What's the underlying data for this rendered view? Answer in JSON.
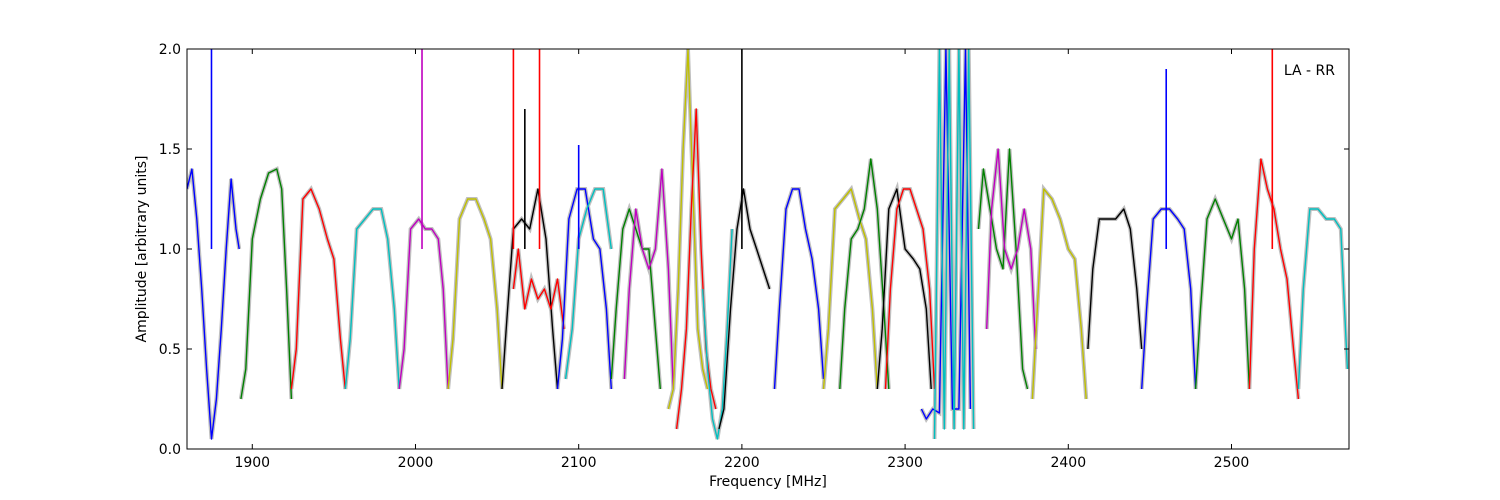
{
  "chart_data": {
    "type": "line",
    "title": "",
    "annotation": "LA - RR",
    "xlabel": "Frequency [MHz]",
    "ylabel": "Amplitude [arbitrary units]",
    "xlim": [
      1860,
      2572
    ],
    "ylim": [
      0.0,
      2.0
    ],
    "xticks": [
      1900,
      2000,
      2100,
      2200,
      2300,
      2400,
      2500
    ],
    "yticks": [
      0.0,
      0.5,
      1.0,
      1.5,
      2.0
    ],
    "xtick_labels": [
      "1900",
      "2000",
      "2100",
      "2200",
      "2300",
      "2400",
      "2500"
    ],
    "ytick_labels": [
      "0.0",
      "0.5",
      "1.0",
      "1.5",
      "2.0"
    ],
    "grid": false,
    "background_color": "#c0c0c0",
    "series": [
      {
        "color": "#0000ff",
        "x": [
          1860,
          1863,
          1866,
          1869,
          1872,
          1875,
          1878,
          1881,
          1884,
          1887,
          1890,
          1892
        ],
        "y": [
          1.3,
          1.4,
          1.15,
          0.8,
          0.4,
          0.05,
          0.25,
          0.6,
          1.0,
          1.35,
          1.1,
          1.0
        ]
      },
      {
        "color": "#008000",
        "x": [
          1893,
          1896,
          1900,
          1905,
          1910,
          1915,
          1918,
          1921,
          1924
        ],
        "y": [
          0.25,
          0.4,
          1.05,
          1.25,
          1.38,
          1.4,
          1.3,
          0.8,
          0.25
        ]
      },
      {
        "color": "#ff0000",
        "x": [
          1924,
          1927,
          1931,
          1936,
          1941,
          1946,
          1950,
          1954,
          1957
        ],
        "y": [
          0.3,
          0.5,
          1.25,
          1.3,
          1.2,
          1.05,
          0.95,
          0.55,
          0.3
        ]
      },
      {
        "color": "#00bfbf",
        "x": [
          1957,
          1960,
          1964,
          1969,
          1974,
          1979,
          1983,
          1987,
          1990
        ],
        "y": [
          0.3,
          0.55,
          1.1,
          1.15,
          1.2,
          1.2,
          1.05,
          0.7,
          0.3
        ]
      },
      {
        "color": "#bf00bf",
        "x": [
          1990,
          1993,
          1997,
          2002,
          2006,
          2010,
          2014,
          2017,
          2020
        ],
        "y": [
          0.3,
          0.5,
          1.1,
          1.15,
          1.1,
          1.1,
          1.05,
          0.8,
          0.3
        ]
      },
      {
        "color": "#bfbf00",
        "x": [
          2020,
          2023,
          2027,
          2032,
          2037,
          2042,
          2046,
          2050,
          2053
        ],
        "y": [
          0.3,
          0.55,
          1.15,
          1.25,
          1.25,
          1.15,
          1.05,
          0.7,
          0.3
        ]
      },
      {
        "color": "#000000",
        "x": [
          2053,
          2056,
          2060,
          2065,
          2070,
          2075,
          2080,
          2084,
          2087
        ],
        "y": [
          0.3,
          0.65,
          1.1,
          1.15,
          1.1,
          1.3,
          1.05,
          0.6,
          0.3
        ]
      },
      {
        "color": "#ff0000",
        "x": [
          2060,
          2063,
          2067,
          2071,
          2075,
          2079,
          2083,
          2087,
          2091
        ],
        "y": [
          0.8,
          1.0,
          0.7,
          0.85,
          0.75,
          0.8,
          0.7,
          0.85,
          0.6
        ]
      },
      {
        "color": "#0000ff",
        "x": [
          2087,
          2090,
          2094,
          2099,
          2104,
          2109,
          2113,
          2117,
          2120
        ],
        "y": [
          0.3,
          0.55,
          1.15,
          1.3,
          1.3,
          1.05,
          1.0,
          0.7,
          0.3
        ]
      },
      {
        "color": "#00bfbf",
        "x": [
          2092,
          2096,
          2100,
          2105,
          2110,
          2115,
          2120
        ],
        "y": [
          0.35,
          0.6,
          1.05,
          1.2,
          1.3,
          1.3,
          1.0
        ]
      },
      {
        "color": "#008000",
        "x": [
          2120,
          2123,
          2127,
          2131,
          2135,
          2139,
          2143,
          2147,
          2150
        ],
        "y": [
          0.35,
          0.7,
          1.1,
          1.2,
          1.1,
          1.0,
          1.0,
          0.6,
          0.3
        ]
      },
      {
        "color": "#bf00bf",
        "x": [
          2128,
          2131,
          2135,
          2139,
          2143,
          2147,
          2151,
          2155,
          2158
        ],
        "y": [
          0.35,
          0.8,
          1.2,
          1.0,
          0.9,
          1.0,
          1.4,
          0.9,
          0.3
        ]
      },
      {
        "color": "#bfbf00",
        "x": [
          2155,
          2158,
          2161,
          2164,
          2167,
          2170,
          2173,
          2176,
          2179
        ],
        "y": [
          0.2,
          0.3,
          0.8,
          1.5,
          2.0,
          1.3,
          0.6,
          0.4,
          0.3
        ]
      },
      {
        "color": "#ff0000",
        "x": [
          2160,
          2163,
          2166,
          2169,
          2172,
          2175,
          2178,
          2181,
          2184
        ],
        "y": [
          0.1,
          0.3,
          0.6,
          1.2,
          1.7,
          1.0,
          0.5,
          0.3,
          0.2
        ]
      },
      {
        "color": "#00bfbf",
        "x": [
          2176,
          2179,
          2182,
          2185,
          2188,
          2191,
          2194
        ],
        "y": [
          0.8,
          0.4,
          0.15,
          0.05,
          0.2,
          0.6,
          1.1
        ]
      },
      {
        "color": "#000000",
        "x": [
          2186,
          2189,
          2193,
          2197,
          2201,
          2205,
          2209,
          2213,
          2217
        ],
        "y": [
          0.1,
          0.2,
          0.7,
          1.1,
          1.3,
          1.1,
          1.0,
          0.9,
          0.8
        ]
      },
      {
        "color": "#0000ff",
        "x": [
          2220,
          2223,
          2227,
          2231,
          2235,
          2239,
          2243,
          2247,
          2250
        ],
        "y": [
          0.3,
          0.7,
          1.2,
          1.3,
          1.3,
          1.1,
          0.95,
          0.7,
          0.35
        ]
      },
      {
        "color": "#bfbf00",
        "x": [
          2250,
          2253,
          2257,
          2262,
          2267,
          2272,
          2276,
          2280,
          2283
        ],
        "y": [
          0.3,
          0.6,
          1.2,
          1.25,
          1.3,
          1.15,
          1.05,
          0.7,
          0.3
        ]
      },
      {
        "color": "#008000",
        "x": [
          2260,
          2263,
          2267,
          2271,
          2275,
          2279,
          2283,
          2287,
          2290
        ],
        "y": [
          0.3,
          0.7,
          1.05,
          1.1,
          1.2,
          1.45,
          1.2,
          0.7,
          0.3
        ]
      },
      {
        "color": "#000000",
        "x": [
          2283,
          2286,
          2290,
          2295,
          2300,
          2305,
          2309,
          2313,
          2316
        ],
        "y": [
          0.3,
          0.6,
          1.2,
          1.3,
          1.0,
          0.95,
          0.9,
          0.7,
          0.3
        ]
      },
      {
        "color": "#ff0000",
        "x": [
          2288,
          2291,
          2295,
          2299,
          2303,
          2307,
          2311,
          2315,
          2318
        ],
        "y": [
          0.3,
          0.8,
          1.2,
          1.3,
          1.3,
          1.2,
          1.1,
          0.8,
          0.3
        ]
      },
      {
        "color": "#0000ff",
        "x": [
          2310,
          2313,
          2317,
          2321,
          2325,
          2329,
          2333,
          2337,
          2340
        ],
        "y": [
          0.2,
          0.15,
          0.2,
          0.18,
          2.0,
          0.2,
          0.2,
          2.0,
          0.2
        ]
      },
      {
        "color": "#00bfbf",
        "x": [
          2318,
          2321,
          2324,
          2327,
          2330,
          2333,
          2336,
          2339,
          2342
        ],
        "y": [
          0.05,
          2.0,
          0.1,
          2.0,
          0.1,
          2.0,
          0.1,
          2.0,
          0.1
        ]
      },
      {
        "color": "#008000",
        "x": [
          2345,
          2348,
          2352,
          2356,
          2360,
          2364,
          2368,
          2372,
          2375
        ],
        "y": [
          1.1,
          1.4,
          1.2,
          1.0,
          0.9,
          1.5,
          1.0,
          0.4,
          0.3
        ]
      },
      {
        "color": "#bf00bf",
        "x": [
          2350,
          2353,
          2357,
          2361,
          2365,
          2369,
          2373,
          2377,
          2380
        ],
        "y": [
          0.6,
          1.2,
          1.5,
          1.0,
          0.9,
          1.0,
          1.2,
          1.0,
          0.5
        ]
      },
      {
        "color": "#bfbf00",
        "x": [
          2378,
          2381,
          2385,
          2390,
          2395,
          2400,
          2404,
          2408,
          2411
        ],
        "y": [
          0.25,
          0.7,
          1.3,
          1.25,
          1.15,
          1.0,
          0.95,
          0.6,
          0.25
        ]
      },
      {
        "color": "#000000",
        "x": [
          2412,
          2415,
          2419,
          2424,
          2429,
          2434,
          2438,
          2442,
          2445
        ],
        "y": [
          0.5,
          0.9,
          1.15,
          1.15,
          1.15,
          1.2,
          1.1,
          0.8,
          0.5
        ]
      },
      {
        "color": "#0000ff",
        "x": [
          2445,
          2448,
          2452,
          2457,
          2462,
          2467,
          2471,
          2475,
          2478
        ],
        "y": [
          0.3,
          0.7,
          1.15,
          1.2,
          1.2,
          1.15,
          1.1,
          0.8,
          0.3
        ]
      },
      {
        "color": "#008000",
        "x": [
          2478,
          2481,
          2485,
          2490,
          2495,
          2500,
          2504,
          2508,
          2511
        ],
        "y": [
          0.3,
          0.7,
          1.15,
          1.25,
          1.15,
          1.05,
          1.15,
          0.8,
          0.3
        ]
      },
      {
        "color": "#ff0000",
        "x": [
          2511,
          2514,
          2518,
          2522,
          2526,
          2530,
          2534,
          2538,
          2541
        ],
        "y": [
          0.3,
          1.0,
          1.45,
          1.3,
          1.2,
          1.0,
          0.85,
          0.5,
          0.25
        ]
      },
      {
        "color": "#00bfbf",
        "x": [
          2541,
          2544,
          2548,
          2553,
          2558,
          2563,
          2567,
          2571
        ],
        "y": [
          0.3,
          0.8,
          1.2,
          1.2,
          1.15,
          1.15,
          1.1,
          0.4
        ]
      }
    ],
    "spikes": [
      {
        "color": "#0000ff",
        "x": 1875,
        "y": 2.0
      },
      {
        "color": "#bf00bf",
        "x": 2004,
        "y": 2.0
      },
      {
        "color": "#ff0000",
        "x": 2060,
        "y": 2.0
      },
      {
        "color": "#000000",
        "x": 2067,
        "y": 1.7
      },
      {
        "color": "#ff0000",
        "x": 2076,
        "y": 2.0
      },
      {
        "color": "#0000ff",
        "x": 2100,
        "y": 1.52
      },
      {
        "color": "#000000",
        "x": 2200,
        "y": 2.0
      },
      {
        "color": "#0000ff",
        "x": 2460,
        "y": 1.9
      },
      {
        "color": "#ff0000",
        "x": 2525,
        "y": 2.0
      }
    ]
  }
}
